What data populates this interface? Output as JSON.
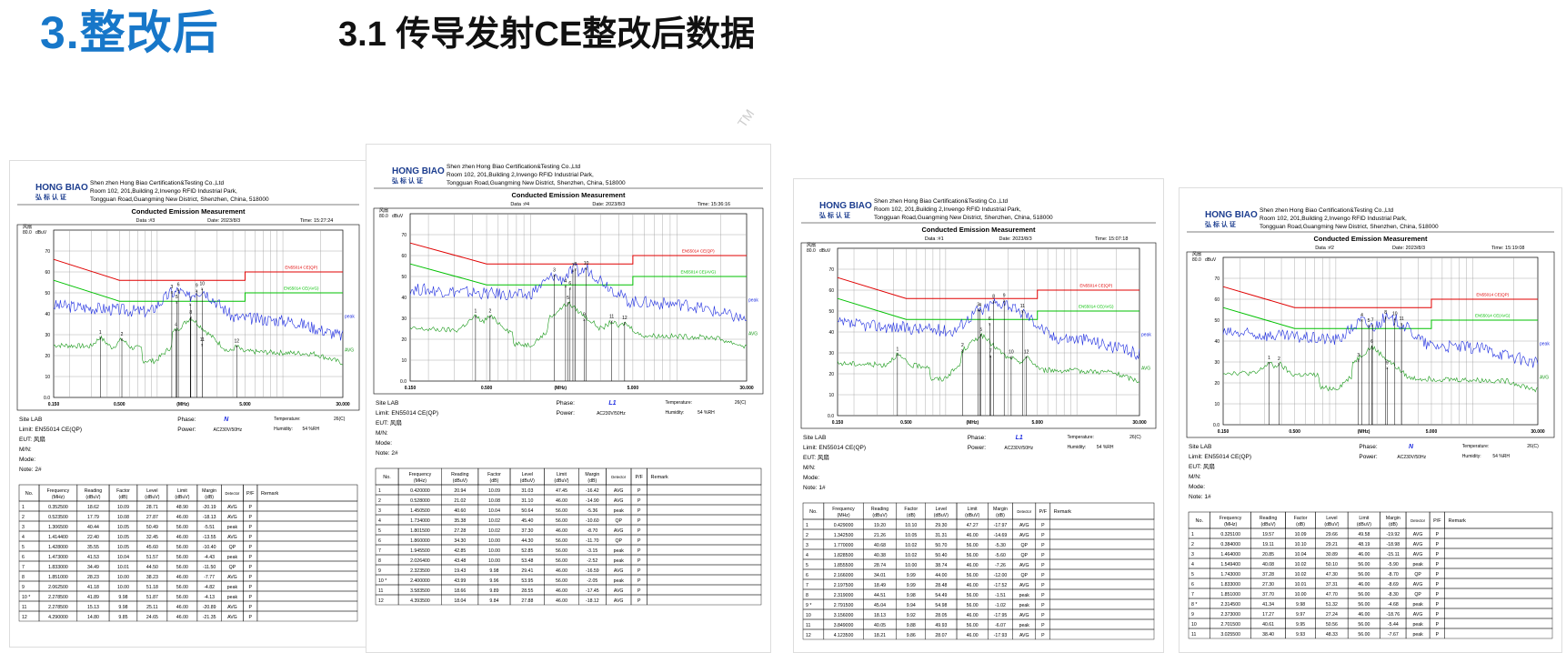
{
  "page": {
    "main_title": "3.整改后",
    "sub_title": "3.1 传导发射CE整改后数据",
    "tm": "TM"
  },
  "company": {
    "logo_en": "HONG BIAO",
    "logo_cn": "弘 标 认 证",
    "line1": "Shen zhen Hong Biao Certification&Testing Co.,Ltd",
    "line2": "Room 102, 201,Building 2,Invengo RFID Industrial Park,",
    "line3": "Tongguan Road,Guangming New District, Shenzhen, China, 518000"
  },
  "common": {
    "chart_title": "Conducted Emission Measurement",
    "ylabel": "dBuV",
    "xlabel": "(MHz)",
    "site": "Site LAB",
    "limit": "Limit: EN55014 CE(QP)",
    "eut": "EUT: 风扇",
    "mn": "M/N:",
    "mode": "Mode:",
    "power_label": "Power:",
    "power": "AC230V/50Hz",
    "temp_label": "Temperature:",
    "temp": "26(C)",
    "hum_label": "Humidity:",
    "hum": "54 %RH",
    "phase_label": "Phase:",
    "legend_qp": "EN55014 CE(QP)",
    "legend_avg": "EN55014 CE(AVG)",
    "peak_label": "peak",
    "avg_label": "AVG",
    "table_headers": [
      "No.",
      "Frequency (MHz)",
      "Reading (dBuV)",
      "Factor (dB)",
      "Level (dBuV)",
      "Limit (dBuV)",
      "Margin (dB)",
      "Detector",
      "P/F",
      "Remark"
    ]
  },
  "chart_data": [
    {
      "type": "line",
      "data_no": "Data :#3",
      "date": "Date: 2023/8/3",
      "time": "Time: 15:27:24",
      "phase": "N",
      "note": "Note: 2#",
      "xscale": "log",
      "xlim": [
        0.15,
        30
      ],
      "ylim": [
        0,
        80
      ],
      "xticks": [
        "0.150",
        "0.500",
        "(MHz)",
        "5.000",
        "30.000"
      ],
      "yticks": [
        "0.0",
        "10",
        "20",
        "30",
        "40",
        "50",
        "60",
        "70",
        "80.0"
      ],
      "rows": [
        [
          "1",
          "0.352500",
          "18.62",
          "10.09",
          "28.71",
          "48.90",
          "-20.19",
          "AVG",
          "P"
        ],
        [
          "2",
          "0.523500",
          "17.79",
          "10.08",
          "27.87",
          "46.00",
          "-18.13",
          "AVG",
          "P"
        ],
        [
          "3",
          "1.306500",
          "40.44",
          "10.05",
          "50.49",
          "56.00",
          "-5.51",
          "peak",
          "P"
        ],
        [
          "4",
          "1.414400",
          "22.40",
          "10.05",
          "32.45",
          "46.00",
          "-13.55",
          "AVG",
          "P"
        ],
        [
          "5",
          "1.428000",
          "35.55",
          "10.05",
          "45.60",
          "56.00",
          "-10.40",
          "QP",
          "P"
        ],
        [
          "6",
          "1.473000",
          "41.53",
          "10.04",
          "51.57",
          "56.00",
          "-4.43",
          "peak",
          "P"
        ],
        [
          "7",
          "1.833000",
          "34.49",
          "10.01",
          "44.50",
          "56.00",
          "-11.50",
          "QP",
          "P"
        ],
        [
          "8",
          "1.851000",
          "28.23",
          "10.00",
          "38.23",
          "46.00",
          "-7.77",
          "AVG",
          "P"
        ],
        [
          "9",
          "2.062500",
          "41.18",
          "10.00",
          "51.18",
          "56.00",
          "-4.82",
          "peak",
          "P"
        ],
        [
          "10 *",
          "2.278500",
          "41.89",
          "9.98",
          "51.87",
          "56.00",
          "-4.13",
          "peak",
          "P"
        ],
        [
          "11",
          "2.278500",
          "15.13",
          "9.98",
          "25.11",
          "46.00",
          "-20.89",
          "AVG",
          "P"
        ],
        [
          "12",
          "4.290000",
          "14.80",
          "9.85",
          "24.65",
          "46.00",
          "-21.35",
          "AVG",
          "P"
        ]
      ]
    },
    {
      "type": "line",
      "data_no": "Data :#4",
      "date": "Date: 2023/8/3",
      "time": "Time: 15:36:16",
      "phase": "L1",
      "note": "Note: 2#",
      "xscale": "log",
      "xlim": [
        0.15,
        30
      ],
      "ylim": [
        0,
        80
      ],
      "xticks": [
        "0.150",
        "0.500",
        "(MHz)",
        "5.000",
        "30.000"
      ],
      "yticks": [
        "0.0",
        "10",
        "20",
        "30",
        "40",
        "50",
        "60",
        "70",
        "80.0"
      ],
      "rows": [
        [
          "1",
          "0.420000",
          "20.94",
          "10.09",
          "31.03",
          "47.45",
          "-16.42",
          "AVG",
          "P"
        ],
        [
          "2",
          "0.528000",
          "21.02",
          "10.08",
          "31.10",
          "46.00",
          "-14.90",
          "AVG",
          "P"
        ],
        [
          "3",
          "1.450500",
          "40.60",
          "10.04",
          "50.64",
          "56.00",
          "-5.36",
          "peak",
          "P"
        ],
        [
          "4",
          "1.734000",
          "35.38",
          "10.02",
          "45.40",
          "56.00",
          "-10.60",
          "QP",
          "P"
        ],
        [
          "5",
          "1.801500",
          "27.28",
          "10.02",
          "37.30",
          "46.00",
          "-8.70",
          "AVG",
          "P"
        ],
        [
          "6",
          "1.860000",
          "34.30",
          "10.00",
          "44.30",
          "56.00",
          "-11.70",
          "QP",
          "P"
        ],
        [
          "7",
          "1.945500",
          "42.85",
          "10.00",
          "52.85",
          "56.00",
          "-3.15",
          "peak",
          "P"
        ],
        [
          "8",
          "2.026400",
          "43.48",
          "10.00",
          "53.48",
          "56.00",
          "-2.52",
          "peak",
          "P"
        ],
        [
          "9",
          "2.323500",
          "19.43",
          "9.98",
          "29.41",
          "46.00",
          "-16.59",
          "AVG",
          "P"
        ],
        [
          "10 *",
          "2.400000",
          "43.99",
          "9.96",
          "53.95",
          "56.00",
          "-2.05",
          "peak",
          "P"
        ],
        [
          "11",
          "3.583500",
          "18.66",
          "9.89",
          "28.55",
          "46.00",
          "-17.45",
          "AVG",
          "P"
        ],
        [
          "12",
          "4.393500",
          "18.04",
          "9.84",
          "27.88",
          "46.00",
          "-18.12",
          "AVG",
          "P"
        ]
      ]
    },
    {
      "type": "line",
      "data_no": "Data :#1",
      "date": "Date: 2023/8/3",
      "time": "Time: 15:07:18",
      "phase": "L1",
      "note": "Note: 1#",
      "xscale": "log",
      "xlim": [
        0.15,
        30
      ],
      "ylim": [
        0,
        80
      ],
      "xticks": [
        "0.150",
        "0.500",
        "(MHz)",
        "5.000",
        "30.000"
      ],
      "yticks": [
        "0.0",
        "10",
        "20",
        "30",
        "40",
        "50",
        "60",
        "70",
        "80.0"
      ],
      "rows": [
        [
          "1",
          "0.429000",
          "19.20",
          "10.10",
          "29.30",
          "47.27",
          "-17.97",
          "AVG",
          "P"
        ],
        [
          "2",
          "1.342500",
          "21.26",
          "10.05",
          "31.31",
          "46.00",
          "-14.69",
          "AVG",
          "P"
        ],
        [
          "3",
          "1.770000",
          "40.68",
          "10.02",
          "50.70",
          "56.00",
          "-5.30",
          "QP",
          "P"
        ],
        [
          "4",
          "1.828500",
          "40.38",
          "10.02",
          "50.40",
          "56.00",
          "-5.60",
          "QP",
          "P"
        ],
        [
          "5",
          "1.855500",
          "28.74",
          "10.00",
          "38.74",
          "46.00",
          "-7.26",
          "AVG",
          "P"
        ],
        [
          "6",
          "2.166000",
          "34.01",
          "9.99",
          "44.00",
          "56.00",
          "-12.00",
          "QP",
          "P"
        ],
        [
          "7",
          "2.197500",
          "18.49",
          "9.99",
          "28.48",
          "46.00",
          "-17.52",
          "AVG",
          "P"
        ],
        [
          "8",
          "2.319000",
          "44.51",
          "9.98",
          "54.49",
          "56.00",
          "-1.51",
          "peak",
          "P"
        ],
        [
          "9 *",
          "2.791500",
          "45.04",
          "9.94",
          "54.98",
          "56.00",
          "-1.02",
          "peak",
          "P"
        ],
        [
          "10",
          "3.156000",
          "18.13",
          "9.92",
          "28.05",
          "46.00",
          "-17.95",
          "AVG",
          "P"
        ],
        [
          "11",
          "3.849000",
          "40.05",
          "9.88",
          "49.93",
          "56.00",
          "-6.07",
          "peak",
          "P"
        ],
        [
          "12",
          "4.123500",
          "18.21",
          "9.86",
          "28.07",
          "46.00",
          "-17.93",
          "AVG",
          "P"
        ]
      ]
    },
    {
      "type": "line",
      "data_no": "Data :#2",
      "date": "Date: 2023/8/3",
      "time": "Time: 15:19:08",
      "phase": "N",
      "note": "Note: 1#",
      "xscale": "log",
      "xlim": [
        0.15,
        30
      ],
      "ylim": [
        0,
        80
      ],
      "xticks": [
        "0.150",
        "0.500",
        "(MHz)",
        "5.000",
        "30.000"
      ],
      "yticks": [
        "0.0",
        "10",
        "20",
        "30",
        "40",
        "50",
        "60",
        "70",
        "80.0"
      ],
      "rows": [
        [
          "1",
          "0.325100",
          "19.57",
          "10.09",
          "29.66",
          "49.58",
          "-19.92",
          "AVG",
          "P"
        ],
        [
          "2",
          "0.384000",
          "19.11",
          "10.10",
          "29.21",
          "48.19",
          "-18.98",
          "AVG",
          "P"
        ],
        [
          "3",
          "1.464000",
          "20.85",
          "10.04",
          "30.89",
          "46.00",
          "-15.11",
          "AVG",
          "P"
        ],
        [
          "4",
          "1.549400",
          "40.08",
          "10.02",
          "50.10",
          "56.00",
          "-5.90",
          "peak",
          "P"
        ],
        [
          "5",
          "1.743000",
          "37.28",
          "10.02",
          "47.30",
          "56.00",
          "-8.70",
          "QP",
          "P"
        ],
        [
          "6",
          "1.833000",
          "27.30",
          "10.01",
          "37.31",
          "46.00",
          "-8.69",
          "AVG",
          "P"
        ],
        [
          "7",
          "1.851000",
          "37.70",
          "10.00",
          "47.70",
          "56.00",
          "-8.30",
          "QP",
          "P"
        ],
        [
          "8 *",
          "2.314500",
          "41.34",
          "9.98",
          "51.32",
          "56.00",
          "-4.68",
          "peak",
          "P"
        ],
        [
          "9",
          "2.373000",
          "17.27",
          "9.97",
          "27.24",
          "46.00",
          "-18.76",
          "AVG",
          "P"
        ],
        [
          "10",
          "2.701500",
          "40.61",
          "9.95",
          "50.56",
          "56.00",
          "-5.44",
          "peak",
          "P"
        ],
        [
          "11",
          "3.025500",
          "38.40",
          "9.93",
          "48.33",
          "56.00",
          "-7.67",
          "peak",
          "P"
        ]
      ]
    }
  ]
}
